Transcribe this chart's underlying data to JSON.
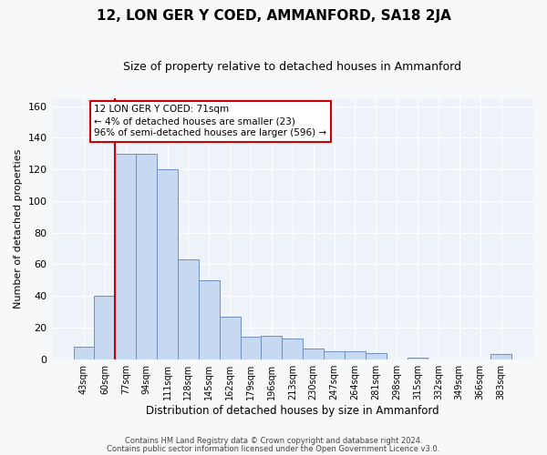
{
  "title": "12, LON GER Y COED, AMMANFORD, SA18 2JA",
  "subtitle": "Size of property relative to detached houses in Ammanford",
  "xlabel": "Distribution of detached houses by size in Ammanford",
  "ylabel": "Number of detached properties",
  "categories": [
    "43sqm",
    "60sqm",
    "77sqm",
    "94sqm",
    "111sqm",
    "128sqm",
    "145sqm",
    "162sqm",
    "179sqm",
    "196sqm",
    "213sqm",
    "230sqm",
    "247sqm",
    "264sqm",
    "281sqm",
    "298sqm",
    "315sqm",
    "332sqm",
    "349sqm",
    "366sqm",
    "383sqm"
  ],
  "values": [
    8,
    40,
    130,
    130,
    120,
    63,
    50,
    27,
    14,
    15,
    13,
    7,
    5,
    5,
    4,
    0,
    1,
    0,
    0,
    0,
    3
  ],
  "bar_color": "#c6d9f1",
  "bar_edge_color": "#7090c0",
  "background_color": "#eef2f9",
  "grid_color": "#ffffff",
  "fig_bg_color": "#f7f8fa",
  "ylim": [
    0,
    165
  ],
  "yticks": [
    0,
    20,
    40,
    60,
    80,
    100,
    120,
    140,
    160
  ],
  "vline_x": 1.47,
  "vline_color": "#cc0000",
  "annotation_text": "12 LON GER Y COED: 71sqm\n← 4% of detached houses are smaller (23)\n96% of semi-detached houses are larger (596) →",
  "annotation_box_color": "#ffffff",
  "annotation_box_edge": "#cc0000",
  "footer1": "Contains HM Land Registry data © Crown copyright and database right 2024.",
  "footer2": "Contains public sector information licensed under the Open Government Licence v3.0."
}
